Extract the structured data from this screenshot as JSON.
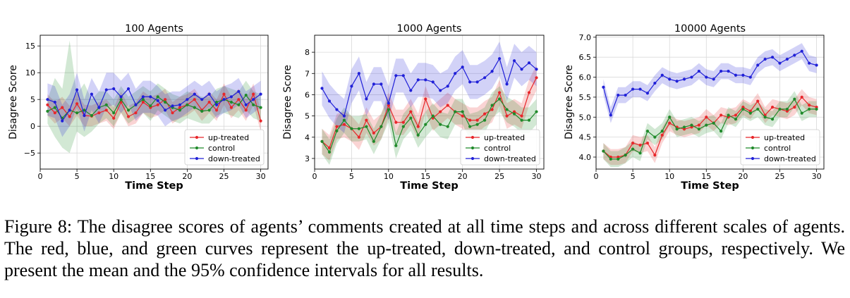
{
  "colors": {
    "up-treated": "#e8262a",
    "control": "#1f8a2a",
    "down-treated": "#2020d8"
  },
  "caption": {
    "label": "Figure 8:",
    "text": "The disagree scores of agents’ comments created at all time steps and across different scales of agents. The red, blue, and green curves represent the up-treated, down-treated, and control groups, respectively. We present the mean and the 95% confidence intervals for all results."
  },
  "chart_data": [
    {
      "type": "line",
      "title": "100 Agents",
      "xlabel": "Time Step",
      "ylabel": "Disagree Score",
      "xlim": [
        0,
        31
      ],
      "ylim": [
        -8,
        17
      ],
      "xticks": [
        0,
        5,
        10,
        15,
        20,
        25,
        30
      ],
      "yticks": [
        -5,
        0,
        5,
        10,
        15
      ],
      "ytick_labels": [
        "−5",
        "0",
        "5",
        "10",
        "15"
      ],
      "legend": [
        "up-treated",
        "control",
        "down-treated"
      ],
      "x": [
        1,
        2,
        3,
        4,
        5,
        6,
        7,
        8,
        9,
        10,
        11,
        12,
        13,
        14,
        15,
        16,
        17,
        18,
        19,
        20,
        21,
        22,
        23,
        24,
        25,
        26,
        27,
        28,
        29,
        30
      ],
      "series": [
        {
          "name": "up-treated",
          "values": [
            4.0,
            2.5,
            3.5,
            1.8,
            4.2,
            2.0,
            1.9,
            2.5,
            3.0,
            1.5,
            4.5,
            1.8,
            2.5,
            4.5,
            3.5,
            4.0,
            5.0,
            2.5,
            3.5,
            4.0,
            5.0,
            3.0,
            4.5,
            3.0,
            6.0,
            3.5,
            5.0,
            3.0,
            6.0,
            1.0
          ],
          "lower": [
            2.0,
            0.5,
            1.5,
            0.0,
            2.0,
            0.0,
            0.0,
            0.5,
            1.0,
            -0.5,
            2.5,
            0.0,
            0.5,
            2.5,
            1.5,
            2.0,
            3.0,
            0.5,
            1.5,
            2.0,
            3.0,
            1.0,
            2.5,
            1.0,
            4.0,
            1.5,
            3.0,
            1.0,
            4.0,
            -1.0
          ],
          "upper": [
            6.0,
            4.5,
            5.5,
            3.8,
            6.2,
            4.0,
            3.9,
            4.5,
            5.0,
            3.5,
            6.5,
            3.8,
            4.5,
            6.5,
            5.5,
            6.0,
            7.0,
            4.5,
            5.5,
            6.0,
            7.0,
            5.0,
            6.5,
            5.0,
            8.0,
            5.5,
            7.0,
            5.0,
            8.0,
            3.0
          ]
        },
        {
          "name": "control",
          "values": [
            2.8,
            3.5,
            1.5,
            3.0,
            2.5,
            3.0,
            2.0,
            3.5,
            4.0,
            2.5,
            5.0,
            3.0,
            4.0,
            5.0,
            3.8,
            5.5,
            4.5,
            3.5,
            3.0,
            4.0,
            3.5,
            2.8,
            3.0,
            4.5,
            5.0,
            4.5,
            4.0,
            5.8,
            4.0,
            3.5
          ],
          "lower": [
            0.5,
            -2.0,
            -4.0,
            -5.0,
            -1.0,
            -2.0,
            -1.0,
            0.5,
            1.5,
            0.0,
            2.5,
            0.5,
            1.5,
            2.5,
            1.0,
            3.0,
            2.0,
            1.0,
            0.5,
            1.5,
            1.0,
            0.5,
            0.5,
            2.0,
            2.5,
            2.0,
            1.5,
            3.0,
            1.5,
            1.0
          ],
          "upper": [
            5.0,
            9.0,
            7.0,
            16.0,
            6.0,
            8.0,
            5.0,
            6.5,
            6.5,
            5.0,
            7.5,
            5.5,
            6.5,
            7.5,
            6.5,
            8.0,
            7.0,
            6.0,
            5.5,
            6.5,
            6.0,
            5.5,
            5.5,
            7.0,
            7.5,
            7.0,
            6.5,
            8.5,
            6.5,
            6.0
          ]
        },
        {
          "name": "down-treated",
          "values": [
            5.0,
            4.5,
            1.0,
            3.0,
            6.8,
            2.0,
            6.0,
            3.5,
            6.8,
            7.0,
            5.5,
            7.0,
            4.0,
            5.5,
            5.5,
            4.8,
            3.0,
            3.8,
            4.0,
            5.0,
            6.0,
            5.0,
            6.0,
            4.0,
            5.0,
            5.5,
            6.5,
            4.0,
            5.0,
            6.0
          ],
          "lower": [
            2.0,
            1.5,
            -2.0,
            0.0,
            3.5,
            -1.0,
            3.0,
            0.5,
            3.5,
            4.0,
            2.5,
            4.0,
            1.0,
            2.5,
            2.5,
            2.0,
            0.0,
            1.0,
            1.5,
            2.5,
            3.5,
            2.5,
            3.5,
            1.5,
            2.5,
            3.0,
            4.0,
            1.5,
            2.5,
            3.5
          ],
          "upper": [
            8.0,
            7.5,
            4.0,
            6.0,
            10.0,
            5.0,
            9.0,
            6.5,
            10.0,
            10.0,
            8.5,
            10.0,
            7.0,
            8.5,
            8.5,
            7.5,
            6.0,
            6.5,
            6.5,
            7.5,
            8.5,
            7.5,
            8.5,
            6.5,
            7.5,
            8.0,
            9.0,
            6.5,
            7.5,
            8.5
          ]
        }
      ]
    },
    {
      "type": "line",
      "title": "1000 Agents",
      "xlabel": "Time Step",
      "ylabel": "Disagree Score",
      "xlim": [
        0,
        31
      ],
      "ylim": [
        2.5,
        8.8
      ],
      "xticks": [
        0,
        5,
        10,
        15,
        20,
        25,
        30
      ],
      "yticks": [
        3,
        4,
        5,
        6,
        7,
        8
      ],
      "ytick_labels": [
        "3",
        "4",
        "5",
        "6",
        "7",
        "8"
      ],
      "legend": [
        "up-treated",
        "control",
        "down-treated"
      ],
      "x": [
        1,
        2,
        3,
        4,
        5,
        6,
        7,
        8,
        9,
        10,
        11,
        12,
        13,
        14,
        15,
        16,
        17,
        18,
        19,
        20,
        21,
        22,
        23,
        24,
        25,
        26,
        27,
        28,
        29,
        30
      ],
      "series": [
        {
          "name": "up-treated",
          "values": [
            3.8,
            3.5,
            4.5,
            4.6,
            4.4,
            4.0,
            4.8,
            4.2,
            4.5,
            5.5,
            4.7,
            4.7,
            5.2,
            4.5,
            5.8,
            4.9,
            5.2,
            5.5,
            5.2,
            5.0,
            4.8,
            4.8,
            5.1,
            5.3,
            6.1,
            5.0,
            5.2,
            5.0,
            6.1,
            6.8
          ],
          "lower": [
            3.2,
            2.9,
            3.9,
            4.0,
            3.8,
            3.4,
            4.2,
            3.6,
            3.9,
            4.9,
            4.1,
            4.1,
            4.6,
            3.9,
            5.2,
            4.3,
            4.6,
            4.9,
            4.6,
            4.4,
            4.2,
            4.2,
            4.5,
            4.7,
            5.5,
            4.4,
            4.6,
            4.4,
            5.5,
            6.2
          ],
          "upper": [
            4.4,
            4.1,
            5.1,
            5.2,
            5.0,
            4.6,
            5.4,
            4.8,
            5.1,
            6.1,
            5.3,
            5.3,
            5.8,
            5.1,
            6.4,
            5.5,
            5.8,
            6.1,
            5.8,
            5.6,
            5.4,
            5.4,
            5.7,
            5.9,
            6.7,
            5.6,
            5.8,
            5.6,
            6.7,
            7.4
          ]
        },
        {
          "name": "control",
          "values": [
            3.8,
            3.3,
            4.3,
            4.8,
            4.4,
            4.4,
            4.5,
            3.8,
            4.5,
            5.3,
            3.6,
            4.5,
            4.9,
            4.1,
            4.6,
            5.0,
            4.6,
            4.5,
            5.2,
            5.2,
            4.5,
            4.6,
            4.8,
            5.5,
            5.8,
            5.3,
            5.1,
            4.8,
            4.8,
            5.2
          ],
          "lower": [
            3.2,
            2.7,
            3.7,
            4.2,
            3.8,
            3.8,
            3.9,
            3.2,
            3.9,
            4.7,
            3.0,
            3.9,
            4.3,
            3.5,
            4.0,
            4.4,
            4.0,
            3.9,
            4.6,
            4.6,
            3.9,
            4.0,
            4.2,
            4.9,
            5.2,
            4.7,
            4.5,
            4.2,
            4.2,
            4.6
          ],
          "upper": [
            4.4,
            3.9,
            4.9,
            5.4,
            5.0,
            5.0,
            5.1,
            4.4,
            5.1,
            5.9,
            4.2,
            5.1,
            5.5,
            4.7,
            5.2,
            5.6,
            5.2,
            5.1,
            5.8,
            5.8,
            5.1,
            5.2,
            5.4,
            6.1,
            6.4,
            5.9,
            5.7,
            5.4,
            5.4,
            5.8
          ]
        },
        {
          "name": "down-treated",
          "values": [
            6.3,
            5.7,
            5.3,
            5.0,
            6.4,
            7.0,
            5.8,
            6.5,
            6.5,
            5.6,
            6.9,
            6.9,
            6.2,
            6.7,
            6.7,
            6.6,
            6.2,
            6.4,
            7.0,
            7.3,
            6.6,
            6.6,
            6.8,
            7.1,
            7.7,
            6.5,
            7.6,
            7.2,
            7.5,
            7.2
          ],
          "lower": [
            5.5,
            4.9,
            4.5,
            4.2,
            5.6,
            6.2,
            5.0,
            5.7,
            5.7,
            4.8,
            6.1,
            6.1,
            5.4,
            5.9,
            5.9,
            5.8,
            5.4,
            5.6,
            6.2,
            6.5,
            5.8,
            5.8,
            6.0,
            6.3,
            6.9,
            5.7,
            6.8,
            6.4,
            6.7,
            6.4
          ],
          "upper": [
            7.1,
            6.5,
            6.1,
            5.8,
            7.2,
            7.8,
            6.6,
            7.3,
            7.3,
            6.4,
            7.7,
            7.7,
            7.0,
            7.5,
            7.5,
            7.4,
            7.0,
            7.2,
            7.8,
            8.1,
            7.4,
            7.4,
            7.6,
            7.9,
            8.5,
            7.3,
            8.4,
            8.0,
            8.3,
            8.0
          ]
        }
      ]
    },
    {
      "type": "line",
      "title": "10000 Agents",
      "xlabel": "Time Step",
      "ylabel": "Disagree Score",
      "xlim": [
        0,
        31
      ],
      "ylim": [
        3.7,
        7.05
      ],
      "xticks": [
        0,
        5,
        10,
        15,
        20,
        25,
        30
      ],
      "yticks": [
        4.0,
        4.5,
        5.0,
        5.5,
        6.0,
        6.5,
        7.0
      ],
      "ytick_labels": [
        "4.0",
        "4.5",
        "5.0",
        "5.5",
        "6.0",
        "6.5",
        "7.0"
      ],
      "legend": [
        "up-treated",
        "control",
        "down-treated"
      ],
      "x": [
        1,
        2,
        3,
        4,
        5,
        6,
        7,
        8,
        9,
        10,
        11,
        12,
        13,
        14,
        15,
        16,
        17,
        18,
        19,
        20,
        21,
        22,
        23,
        24,
        25,
        26,
        27,
        28,
        29,
        30
      ],
      "series": [
        {
          "name": "up-treated",
          "values": [
            4.15,
            4.0,
            4.0,
            4.05,
            4.35,
            4.3,
            4.35,
            4.05,
            4.55,
            4.85,
            4.75,
            4.7,
            4.75,
            4.8,
            5.0,
            4.85,
            5.05,
            5.0,
            5.05,
            5.25,
            5.15,
            5.4,
            5.05,
            5.25,
            5.2,
            5.15,
            5.25,
            5.5,
            5.3,
            5.25
          ],
          "lower": [
            3.95,
            3.8,
            3.8,
            3.85,
            4.15,
            4.1,
            4.15,
            3.85,
            4.35,
            4.65,
            4.55,
            4.5,
            4.55,
            4.6,
            4.8,
            4.65,
            4.85,
            4.8,
            4.85,
            5.05,
            4.95,
            5.2,
            4.85,
            5.05,
            5.0,
            4.95,
            5.05,
            5.3,
            5.1,
            5.05
          ],
          "upper": [
            4.35,
            4.2,
            4.2,
            4.25,
            4.55,
            4.5,
            4.55,
            4.25,
            4.75,
            5.05,
            4.95,
            4.9,
            4.95,
            5.0,
            5.2,
            5.05,
            5.25,
            5.2,
            5.25,
            5.45,
            5.35,
            5.6,
            5.25,
            5.45,
            5.4,
            5.35,
            5.45,
            5.7,
            5.5,
            5.45
          ]
        },
        {
          "name": "control",
          "values": [
            4.15,
            3.95,
            3.95,
            4.05,
            4.2,
            4.1,
            4.65,
            4.5,
            4.65,
            5.0,
            4.7,
            4.75,
            4.8,
            4.7,
            4.8,
            4.85,
            4.65,
            5.05,
            4.95,
            5.2,
            5.1,
            5.2,
            5.0,
            4.95,
            5.2,
            5.2,
            5.45,
            5.1,
            5.2,
            5.2
          ],
          "lower": [
            3.95,
            3.75,
            3.75,
            3.85,
            4.0,
            3.9,
            4.45,
            4.3,
            4.45,
            4.8,
            4.5,
            4.55,
            4.6,
            4.5,
            4.6,
            4.65,
            4.45,
            4.85,
            4.75,
            5.0,
            4.9,
            5.0,
            4.8,
            4.75,
            5.0,
            5.0,
            5.25,
            4.9,
            5.0,
            5.0
          ],
          "upper": [
            4.35,
            4.15,
            4.15,
            4.25,
            4.4,
            4.3,
            4.85,
            4.7,
            4.85,
            5.2,
            4.9,
            4.95,
            5.0,
            4.9,
            5.0,
            5.05,
            4.85,
            5.25,
            5.15,
            5.4,
            5.3,
            5.4,
            5.2,
            5.15,
            5.4,
            5.4,
            5.65,
            5.3,
            5.4,
            5.4
          ]
        },
        {
          "name": "down-treated",
          "values": [
            5.75,
            5.05,
            5.55,
            5.55,
            5.7,
            5.7,
            5.6,
            5.85,
            6.05,
            5.95,
            5.9,
            5.95,
            6.0,
            6.15,
            6.0,
            5.95,
            6.15,
            6.15,
            6.05,
            6.05,
            6.0,
            6.3,
            6.45,
            6.5,
            6.35,
            6.45,
            6.55,
            6.65,
            6.35,
            6.3
          ],
          "lower": [
            5.55,
            4.85,
            5.35,
            5.35,
            5.5,
            5.5,
            5.4,
            5.65,
            5.85,
            5.75,
            5.7,
            5.75,
            5.8,
            5.95,
            5.8,
            5.75,
            5.95,
            5.95,
            5.85,
            5.85,
            5.8,
            6.1,
            6.25,
            6.3,
            6.15,
            6.25,
            6.35,
            6.45,
            6.15,
            6.1
          ],
          "upper": [
            5.95,
            5.25,
            5.75,
            5.75,
            5.9,
            5.9,
            5.8,
            6.05,
            6.25,
            6.15,
            6.1,
            6.15,
            6.2,
            6.35,
            6.2,
            6.15,
            6.35,
            6.35,
            6.25,
            6.25,
            6.2,
            6.5,
            6.65,
            6.7,
            6.55,
            6.65,
            6.75,
            6.85,
            6.55,
            6.5
          ]
        }
      ]
    }
  ]
}
